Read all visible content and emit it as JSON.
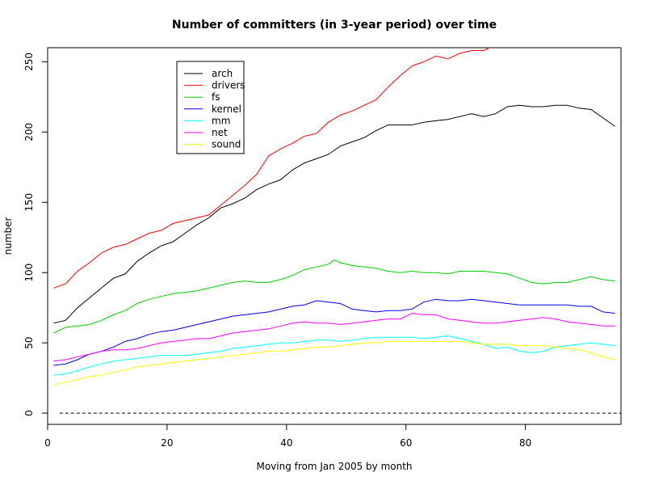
{
  "chart_data": {
    "type": "line",
    "title": "Number of committers (in 3-year period) over time",
    "xlabel": "Moving from Jan 2005 by month",
    "ylabel": "number",
    "xlim": [
      0,
      96
    ],
    "ylim": [
      -8,
      260
    ],
    "x_ticks": [
      0,
      20,
      40,
      60,
      80
    ],
    "y_ticks": [
      0,
      50,
      100,
      150,
      200,
      250
    ],
    "legend_position": "top-left",
    "grid": false,
    "baseline": {
      "y": 0,
      "x_from": 2,
      "x_to": 96,
      "style": "dashed"
    },
    "series": [
      {
        "name": "arch",
        "color": "#000000",
        "points": [
          [
            1,
            64
          ],
          [
            3,
            66
          ],
          [
            5,
            75
          ],
          [
            7,
            82
          ],
          [
            9,
            89
          ],
          [
            11,
            96
          ],
          [
            13,
            99
          ],
          [
            15,
            108
          ],
          [
            17,
            114
          ],
          [
            19,
            119
          ],
          [
            21,
            122
          ],
          [
            23,
            128
          ],
          [
            25,
            134
          ],
          [
            27,
            139
          ],
          [
            29,
            146
          ],
          [
            31,
            149
          ],
          [
            33,
            153
          ],
          [
            35,
            159
          ],
          [
            37,
            163
          ],
          [
            39,
            166
          ],
          [
            41,
            173
          ],
          [
            43,
            178
          ],
          [
            45,
            181
          ],
          [
            47,
            184
          ],
          [
            49,
            190
          ],
          [
            51,
            193
          ],
          [
            53,
            196
          ],
          [
            55,
            201
          ],
          [
            57,
            205
          ],
          [
            59,
            205
          ],
          [
            61,
            205
          ],
          [
            63,
            207
          ],
          [
            65,
            208
          ],
          [
            67,
            209
          ],
          [
            69,
            211
          ],
          [
            71,
            213
          ],
          [
            73,
            211
          ],
          [
            75,
            213
          ],
          [
            77,
            218
          ],
          [
            79,
            219
          ],
          [
            81,
            218
          ],
          [
            83,
            218
          ],
          [
            85,
            219
          ],
          [
            87,
            219
          ],
          [
            89,
            217
          ],
          [
            91,
            216
          ],
          [
            93,
            210
          ],
          [
            95,
            204
          ]
        ]
      },
      {
        "name": "drivers",
        "color": "#ff0000",
        "points": [
          [
            1,
            89
          ],
          [
            3,
            92
          ],
          [
            5,
            101
          ],
          [
            7,
            107
          ],
          [
            9,
            114
          ],
          [
            11,
            118
          ],
          [
            13,
            120
          ],
          [
            15,
            124
          ],
          [
            17,
            128
          ],
          [
            19,
            130
          ],
          [
            21,
            135
          ],
          [
            23,
            137
          ],
          [
            25,
            139
          ],
          [
            27,
            141
          ],
          [
            29,
            148
          ],
          [
            31,
            155
          ],
          [
            33,
            162
          ],
          [
            35,
            170
          ],
          [
            37,
            183
          ],
          [
            39,
            188
          ],
          [
            41,
            192
          ],
          [
            43,
            197
          ],
          [
            45,
            199
          ],
          [
            47,
            207
          ],
          [
            49,
            212
          ],
          [
            51,
            215
          ],
          [
            53,
            219
          ],
          [
            55,
            223
          ],
          [
            57,
            232
          ],
          [
            59,
            240
          ],
          [
            61,
            247
          ],
          [
            63,
            250
          ],
          [
            65,
            254
          ],
          [
            67,
            252
          ],
          [
            69,
            256
          ],
          [
            71,
            258
          ],
          [
            73,
            258
          ],
          [
            75,
            262
          ]
        ]
      },
      {
        "name": "fs",
        "color": "#00cd00",
        "points": [
          [
            1,
            57
          ],
          [
            3,
            61
          ],
          [
            5,
            62
          ],
          [
            7,
            63
          ],
          [
            9,
            66
          ],
          [
            11,
            70
          ],
          [
            13,
            73
          ],
          [
            15,
            78
          ],
          [
            17,
            81
          ],
          [
            19,
            83
          ],
          [
            21,
            85
          ],
          [
            23,
            86
          ],
          [
            25,
            87
          ],
          [
            27,
            89
          ],
          [
            29,
            91
          ],
          [
            31,
            93
          ],
          [
            33,
            94
          ],
          [
            35,
            93
          ],
          [
            37,
            93
          ],
          [
            39,
            95
          ],
          [
            41,
            98
          ],
          [
            43,
            102
          ],
          [
            45,
            104
          ],
          [
            47,
            106
          ],
          [
            48,
            109
          ],
          [
            49,
            107
          ],
          [
            51,
            105
          ],
          [
            53,
            104
          ],
          [
            55,
            103
          ],
          [
            57,
            101
          ],
          [
            59,
            100
          ],
          [
            61,
            101
          ],
          [
            63,
            100
          ],
          [
            65,
            100
          ],
          [
            67,
            99
          ],
          [
            69,
            101
          ],
          [
            71,
            101
          ],
          [
            73,
            101
          ],
          [
            75,
            100
          ],
          [
            77,
            99
          ],
          [
            79,
            96
          ],
          [
            81,
            93
          ],
          [
            83,
            92
          ],
          [
            85,
            93
          ],
          [
            87,
            93
          ],
          [
            89,
            95
          ],
          [
            91,
            97
          ],
          [
            93,
            95
          ],
          [
            95,
            94
          ]
        ]
      },
      {
        "name": "kernel",
        "color": "#0000ff",
        "points": [
          [
            1,
            34
          ],
          [
            3,
            35
          ],
          [
            5,
            38
          ],
          [
            7,
            42
          ],
          [
            9,
            44
          ],
          [
            11,
            47
          ],
          [
            13,
            51
          ],
          [
            15,
            53
          ],
          [
            17,
            56
          ],
          [
            19,
            58
          ],
          [
            21,
            59
          ],
          [
            23,
            61
          ],
          [
            25,
            63
          ],
          [
            27,
            65
          ],
          [
            29,
            67
          ],
          [
            31,
            69
          ],
          [
            33,
            70
          ],
          [
            35,
            71
          ],
          [
            37,
            72
          ],
          [
            39,
            74
          ],
          [
            41,
            76
          ],
          [
            43,
            77
          ],
          [
            45,
            80
          ],
          [
            47,
            79
          ],
          [
            49,
            78
          ],
          [
            51,
            74
          ],
          [
            53,
            73
          ],
          [
            55,
            72
          ],
          [
            57,
            73
          ],
          [
            59,
            73
          ],
          [
            61,
            74
          ],
          [
            63,
            79
          ],
          [
            65,
            81
          ],
          [
            67,
            80
          ],
          [
            69,
            80
          ],
          [
            71,
            81
          ],
          [
            73,
            80
          ],
          [
            75,
            79
          ],
          [
            77,
            78
          ],
          [
            79,
            77
          ],
          [
            81,
            77
          ],
          [
            83,
            77
          ],
          [
            85,
            77
          ],
          [
            87,
            77
          ],
          [
            89,
            76
          ],
          [
            91,
            76
          ],
          [
            93,
            72
          ],
          [
            95,
            71
          ]
        ]
      },
      {
        "name": "mm",
        "color": "#00ffff",
        "points": [
          [
            1,
            27
          ],
          [
            3,
            28
          ],
          [
            5,
            30
          ],
          [
            7,
            33
          ],
          [
            9,
            35
          ],
          [
            11,
            37
          ],
          [
            13,
            38
          ],
          [
            15,
            39
          ],
          [
            17,
            40
          ],
          [
            19,
            41
          ],
          [
            21,
            41
          ],
          [
            23,
            41
          ],
          [
            25,
            42
          ],
          [
            27,
            43
          ],
          [
            29,
            44
          ],
          [
            31,
            46
          ],
          [
            33,
            47
          ],
          [
            35,
            48
          ],
          [
            37,
            49
          ],
          [
            39,
            50
          ],
          [
            41,
            50
          ],
          [
            43,
            51
          ],
          [
            45,
            52
          ],
          [
            47,
            52
          ],
          [
            49,
            51
          ],
          [
            51,
            52
          ],
          [
            53,
            53
          ],
          [
            55,
            54
          ],
          [
            57,
            54
          ],
          [
            59,
            54
          ],
          [
            61,
            54
          ],
          [
            63,
            53
          ],
          [
            65,
            54
          ],
          [
            67,
            55
          ],
          [
            69,
            53
          ],
          [
            71,
            51
          ],
          [
            73,
            49
          ],
          [
            75,
            46
          ],
          [
            77,
            47
          ],
          [
            79,
            44
          ],
          [
            81,
            43
          ],
          [
            83,
            44
          ],
          [
            85,
            47
          ],
          [
            87,
            48
          ],
          [
            89,
            49
          ],
          [
            91,
            50
          ],
          [
            93,
            49
          ],
          [
            95,
            48
          ]
        ]
      },
      {
        "name": "net",
        "color": "#ff00ff",
        "points": [
          [
            1,
            37
          ],
          [
            3,
            38
          ],
          [
            5,
            40
          ],
          [
            7,
            42
          ],
          [
            9,
            44
          ],
          [
            11,
            45
          ],
          [
            13,
            45
          ],
          [
            15,
            46
          ],
          [
            17,
            48
          ],
          [
            19,
            50
          ],
          [
            21,
            51
          ],
          [
            23,
            52
          ],
          [
            25,
            53
          ],
          [
            27,
            53
          ],
          [
            29,
            55
          ],
          [
            31,
            57
          ],
          [
            33,
            58
          ],
          [
            35,
            59
          ],
          [
            37,
            60
          ],
          [
            39,
            62
          ],
          [
            41,
            64
          ],
          [
            43,
            65
          ],
          [
            45,
            64
          ],
          [
            47,
            64
          ],
          [
            49,
            63
          ],
          [
            51,
            64
          ],
          [
            53,
            65
          ],
          [
            55,
            66
          ],
          [
            57,
            67
          ],
          [
            59,
            67
          ],
          [
            61,
            71
          ],
          [
            63,
            70
          ],
          [
            65,
            70
          ],
          [
            67,
            67
          ],
          [
            69,
            66
          ],
          [
            71,
            65
          ],
          [
            73,
            64
          ],
          [
            75,
            64
          ],
          [
            77,
            65
          ],
          [
            79,
            66
          ],
          [
            81,
            67
          ],
          [
            83,
            68
          ],
          [
            85,
            67
          ],
          [
            87,
            65
          ],
          [
            89,
            64
          ],
          [
            91,
            63
          ],
          [
            93,
            62
          ],
          [
            95,
            62
          ]
        ]
      },
      {
        "name": "sound",
        "color": "#ffff00",
        "points": [
          [
            1,
            20
          ],
          [
            3,
            22
          ],
          [
            5,
            24
          ],
          [
            7,
            26
          ],
          [
            9,
            27
          ],
          [
            11,
            29
          ],
          [
            13,
            31
          ],
          [
            15,
            33
          ],
          [
            17,
            34
          ],
          [
            19,
            35
          ],
          [
            21,
            36
          ],
          [
            23,
            37
          ],
          [
            25,
            38
          ],
          [
            27,
            39
          ],
          [
            29,
            40
          ],
          [
            31,
            41
          ],
          [
            33,
            42
          ],
          [
            35,
            43
          ],
          [
            37,
            44
          ],
          [
            39,
            44
          ],
          [
            41,
            45
          ],
          [
            43,
            46
          ],
          [
            45,
            47
          ],
          [
            47,
            47
          ],
          [
            49,
            48
          ],
          [
            51,
            49
          ],
          [
            53,
            50
          ],
          [
            55,
            50
          ],
          [
            57,
            51
          ],
          [
            59,
            51
          ],
          [
            61,
            51
          ],
          [
            63,
            51
          ],
          [
            65,
            51
          ],
          [
            67,
            51
          ],
          [
            69,
            51
          ],
          [
            71,
            50
          ],
          [
            73,
            49
          ],
          [
            75,
            49
          ],
          [
            77,
            49
          ],
          [
            79,
            48
          ],
          [
            81,
            48
          ],
          [
            83,
            48
          ],
          [
            85,
            47
          ],
          [
            87,
            46
          ],
          [
            89,
            45
          ],
          [
            91,
            43
          ],
          [
            93,
            40
          ],
          [
            95,
            38
          ]
        ]
      }
    ]
  }
}
